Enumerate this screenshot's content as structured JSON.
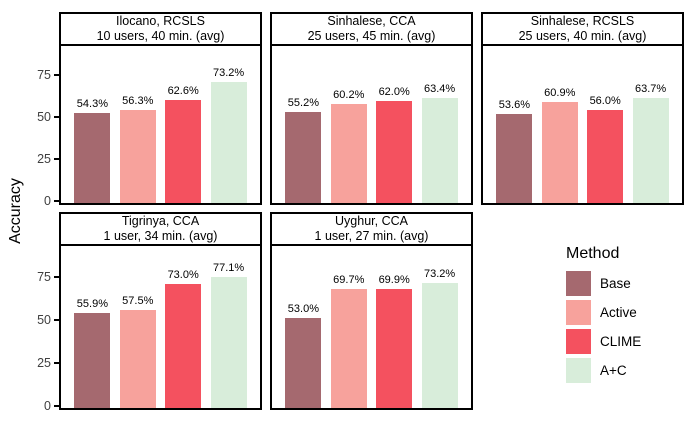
{
  "figure": {
    "y_axis_label": "Accuracy",
    "y_tick_labels": [
      "0",
      "25",
      "50",
      "75"
    ],
    "legend": {
      "title": "Method",
      "items": [
        {
          "label": "Base",
          "color": "#A5696F"
        },
        {
          "label": "Active",
          "color": "#F7A29C"
        },
        {
          "label": "CLIME",
          "color": "#F4515F"
        },
        {
          "label": "A+C",
          "color": "#D8EDDA"
        }
      ]
    }
  },
  "chart_data": {
    "type": "bar",
    "title": "",
    "xlabel": "",
    "ylabel": "Accuracy",
    "ylim": [
      0,
      95
    ],
    "y_ticks": [
      0,
      25,
      50,
      75
    ],
    "grid": false,
    "legend_position": "bottom-right",
    "series_names": [
      "Base",
      "Active",
      "CLIME",
      "A+C"
    ],
    "panels": [
      {
        "title_lines": [
          "Ilocano, RCSLS",
          "10 users, 40 min. (avg)"
        ],
        "values": [
          54.3,
          56.3,
          62.6,
          73.2
        ],
        "value_labels": [
          "54.3%",
          "56.3%",
          "62.6%",
          "73.2%"
        ]
      },
      {
        "title_lines": [
          "Sinhalese, CCA",
          "25 users, 45 min. (avg)"
        ],
        "values": [
          55.2,
          60.2,
          62.0,
          63.4
        ],
        "value_labels": [
          "55.2%",
          "60.2%",
          "62.0%",
          "63.4%"
        ]
      },
      {
        "title_lines": [
          "Sinhalese, RCSLS",
          "25 users, 40 min. (avg)"
        ],
        "values": [
          53.6,
          60.9,
          56.0,
          63.7
        ],
        "value_labels": [
          "53.6%",
          "60.9%",
          "56.0%",
          "63.7%"
        ]
      },
      {
        "title_lines": [
          "Tigrinya, CCA",
          "1 user, 34 min. (avg)"
        ],
        "values": [
          55.9,
          57.5,
          73.0,
          77.1
        ],
        "value_labels": [
          "55.9%",
          "57.5%",
          "73.0%",
          "77.1%"
        ]
      },
      {
        "title_lines": [
          "Uyghur, CCA",
          "1 user, 27 min. (avg)"
        ],
        "values": [
          53.0,
          69.7,
          69.9,
          73.2
        ],
        "value_labels": [
          "53.0%",
          "69.7%",
          "69.9%",
          "73.2%"
        ]
      }
    ]
  }
}
